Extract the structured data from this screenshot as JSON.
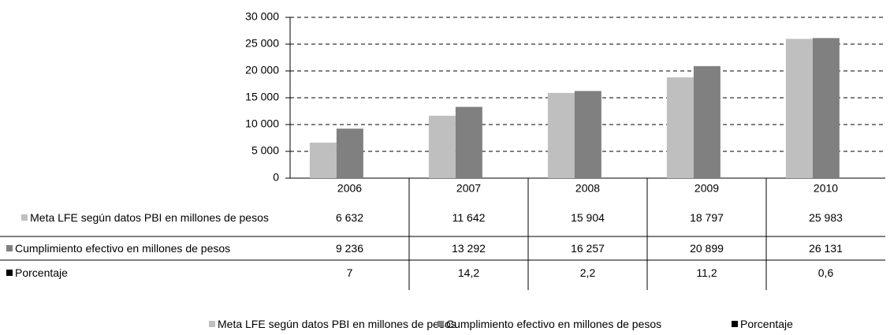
{
  "chart_data": {
    "type": "bar",
    "categories": [
      "2006",
      "2007",
      "2008",
      "2009",
      "2010"
    ],
    "series": [
      {
        "name": "Meta LFE según datos PBI en millones de pesos",
        "color": "#bfbfbf",
        "values": [
          6632,
          11642,
          15904,
          18797,
          25983
        ],
        "value_labels": [
          "6 632",
          "11 642",
          "15 904",
          "18 797",
          "25 983"
        ]
      },
      {
        "name": "Cumplimiento efectivo en millones de pesos",
        "color": "#808080",
        "values": [
          9236,
          13292,
          16257,
          20899,
          26131
        ],
        "value_labels": [
          "9 236",
          "13 292",
          "16 257",
          "20 899",
          "26 131"
        ]
      },
      {
        "name": "Porcentaje",
        "color": "#000000",
        "values": [
          7,
          14.2,
          2.2,
          11.2,
          0.6
        ],
        "value_labels": [
          "7",
          "14,2",
          "2,2",
          "11,2",
          "0,6"
        ]
      }
    ],
    "ylim": [
      0,
      30000
    ],
    "yticks": [
      0,
      {
        "value": 5000,
        "label": "5 000"
      },
      {
        "value": 10000,
        "label": "10 000"
      },
      {
        "value": 15000,
        "label": "15 000"
      },
      {
        "value": 20000,
        "label": "20 000"
      },
      {
        "value": 25000,
        "label": "25 000"
      },
      {
        "value": 30000,
        "label": "30 000"
      }
    ],
    "grid": true,
    "legend": "bottom"
  }
}
